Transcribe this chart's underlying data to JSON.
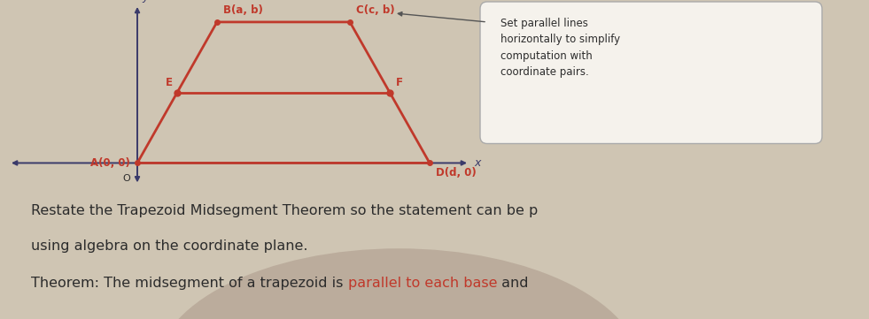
{
  "bg_color": "#cfc5b3",
  "top_bg": "#e8e0d0",
  "bottom_blob_color": "#b8a898",
  "trap_color": "#c0392b",
  "axis_color": "#3a3a6a",
  "text_dark": "#2c2c2c",
  "text_red": "#c0392b",
  "callout_bg": "#f5f2ec",
  "callout_edge": "#aaaaaa",
  "A": [
    0.0,
    0.0
  ],
  "B": [
    0.9,
    1.6
  ],
  "C": [
    2.4,
    1.6
  ],
  "D": [
    3.3,
    0.0
  ],
  "E": [
    0.45,
    0.8
  ],
  "F": [
    2.85,
    0.8
  ],
  "label_A": "A(0, 0)",
  "label_B": "B(a, b)",
  "label_C": "C(c, b)",
  "label_D": "D(d, 0)",
  "label_E": "E",
  "label_F": "F",
  "label_x": "x",
  "label_y": "y",
  "label_O": "O",
  "callout_text": "Set parallel lines\nhorizontally to simplify\ncomputation with\ncoordinate pairs.",
  "text1": "Restate the Trapezoid Midsegment Theorem so the statement can be p",
  "text2": "using algebra on the coordinate plane.",
  "theorem_pre": "Theorem: The midsegment of a trapezoid is ",
  "theorem_red": "parallel to each base",
  "theorem_post": " and"
}
